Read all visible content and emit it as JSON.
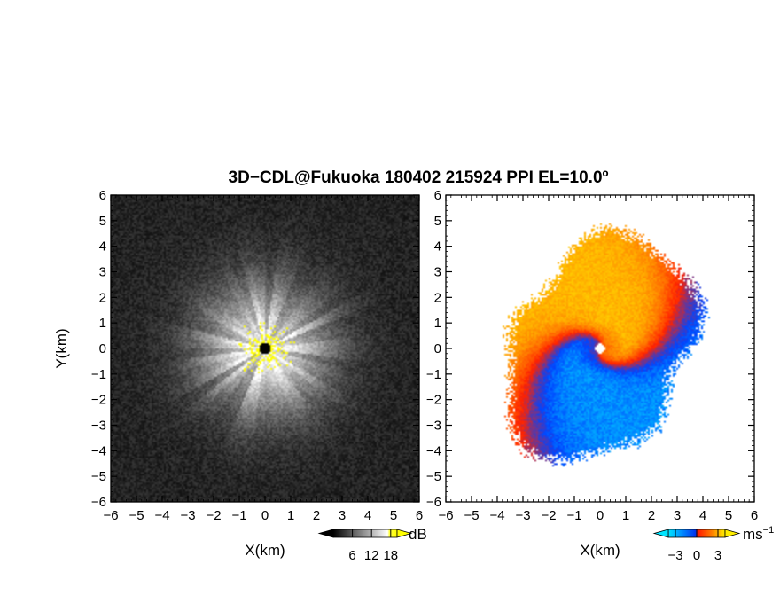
{
  "title": "3D−CDL@Fukuoka 180402 215924 PPI EL=10.0º",
  "chart_data": [
    {
      "type": "heatmap",
      "panel": "left",
      "xlabel": "X(km)",
      "ylabel": "Y(km)",
      "xlim": [
        -6,
        6
      ],
      "ylim": [
        -6,
        6
      ],
      "xticks": [
        "−6",
        "−5",
        "−4",
        "−3",
        "−2",
        "−1",
        "0",
        "1",
        "2",
        "3",
        "4",
        "5",
        "6"
      ],
      "yticks": [
        "−6",
        "−5",
        "−4",
        "−3",
        "−2",
        "−1",
        "0",
        "1",
        "2",
        "3",
        "4",
        "5",
        "6"
      ],
      "field": {
        "peak_db": 16,
        "radius_km": 4.2,
        "background_db": 2
      },
      "colorbar": {
        "unit": "dB",
        "ticks": [
          {
            "value": 6,
            "label": "6"
          },
          {
            "value": 12,
            "label": "12"
          },
          {
            "value": 18,
            "label": "18"
          }
        ],
        "range": [
          0,
          20
        ],
        "colors": [
          "#000000",
          "#ffffff",
          "#ffff00"
        ]
      }
    },
    {
      "type": "heatmap",
      "panel": "right",
      "xlabel": "X(km)",
      "ylabel": "",
      "xlim": [
        -6,
        6
      ],
      "ylim": [
        -6,
        6
      ],
      "xticks": [
        "−6",
        "−5",
        "−4",
        "−3",
        "−2",
        "−1",
        "0",
        "1",
        "2",
        "3",
        "4",
        "5",
        "6"
      ],
      "yticks": [
        "−6",
        "−5",
        "−4",
        "−3",
        "−2",
        "−1",
        "0",
        "1",
        "2",
        "3",
        "4",
        "5",
        "6"
      ],
      "field": {
        "vmax_ms": 3,
        "radius_km": 3.9
      },
      "colorbar": {
        "unit": "ms",
        "unit_exponent": "−1",
        "ticks": [
          {
            "value": -3,
            "label": "−3"
          },
          {
            "value": 0,
            "label": "0"
          },
          {
            "value": 3,
            "label": "3"
          }
        ],
        "range": [
          -4,
          4
        ],
        "colors": [
          "#00e5ff",
          "#0044ff",
          "#ff2200",
          "#ff8800",
          "#ffee00"
        ]
      }
    }
  ]
}
